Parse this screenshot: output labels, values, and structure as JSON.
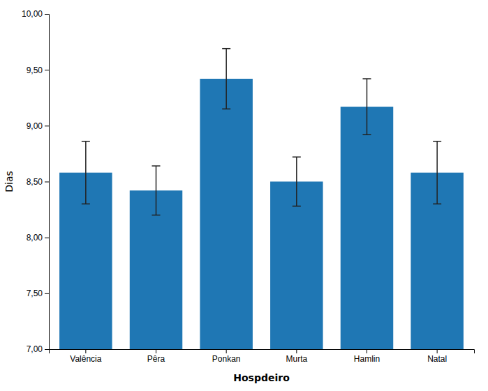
{
  "chart_data": {
    "type": "bar",
    "categories": [
      "Valência",
      "Pêra",
      "Ponkan",
      "Murta",
      "Hamlin",
      "Natal"
    ],
    "values": [
      8.58,
      8.42,
      9.42,
      8.5,
      9.17,
      8.58
    ],
    "errors": [
      0.28,
      0.22,
      0.27,
      0.22,
      0.25,
      0.28
    ],
    "xlabel": "Hospdeiro",
    "ylabel": "Dias",
    "ylim": [
      7.0,
      10.0
    ],
    "yticks": [
      {
        "value": 7.0,
        "label": "7,00"
      },
      {
        "value": 7.5,
        "label": "7,50"
      },
      {
        "value": 8.0,
        "label": "8,00"
      },
      {
        "value": 8.5,
        "label": "8,50"
      },
      {
        "value": 9.0,
        "label": "9,00"
      },
      {
        "value": 9.5,
        "label": "9,50"
      },
      {
        "value": 10.0,
        "label": "10,00"
      }
    ]
  }
}
